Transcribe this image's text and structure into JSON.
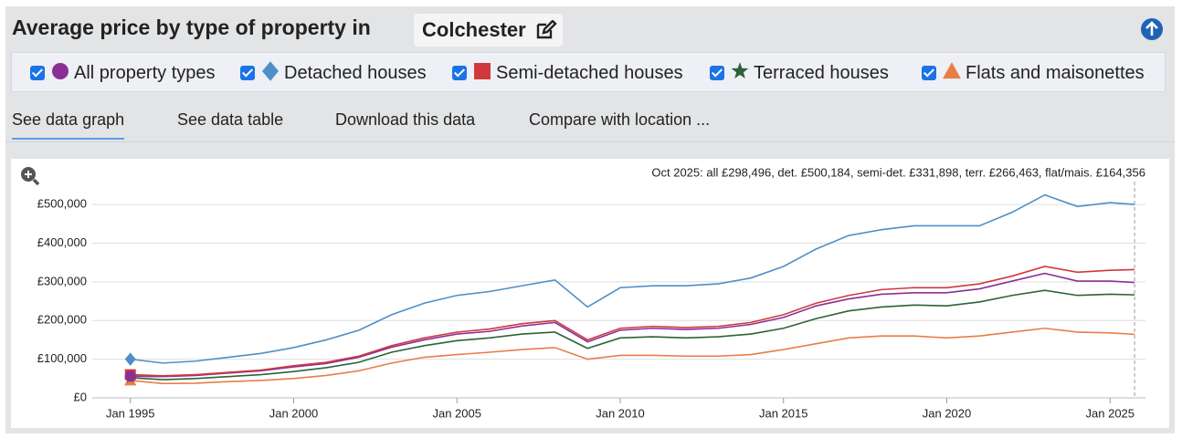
{
  "header": {
    "title": "Average price by type of property in",
    "location": "Colchester"
  },
  "tabs": [
    "See data graph",
    "See data table",
    "Download this data",
    "Compare with location ..."
  ],
  "chart_data": {
    "type": "line",
    "annotation": "Oct 2025: all £298,496, det. £500,184, semi-det. £331,898, terr. £266,463, flat/mais. £164,356",
    "x": [
      "1995-01",
      "1996-01",
      "1997-01",
      "1998-01",
      "1999-01",
      "2000-01",
      "2001-01",
      "2002-01",
      "2003-01",
      "2004-01",
      "2005-01",
      "2006-01",
      "2007-01",
      "2008-01",
      "2009-01",
      "2010-01",
      "2011-01",
      "2012-01",
      "2013-01",
      "2014-01",
      "2015-01",
      "2016-01",
      "2017-01",
      "2018-01",
      "2019-01",
      "2020-01",
      "2021-01",
      "2022-01",
      "2023-01",
      "2024-01",
      "2025-01",
      "2025-10"
    ],
    "series": [
      {
        "name": "All property types",
        "color": "#8b2f96",
        "marker": "circle",
        "values": [
          56000,
          55000,
          58000,
          64000,
          70000,
          80000,
          89000,
          105000,
          131000,
          150000,
          165000,
          172000,
          186000,
          195000,
          145000,
          175000,
          180000,
          177000,
          180000,
          190000,
          208000,
          238000,
          256000,
          268000,
          272000,
          272000,
          282000,
          302000,
          322000,
          302000,
          302000,
          298496
        ]
      },
      {
        "name": "Detached houses",
        "color": "#4f8fc7",
        "marker": "diamond",
        "values": [
          100000,
          90000,
          95000,
          105000,
          115000,
          130000,
          150000,
          175000,
          215000,
          245000,
          265000,
          275000,
          290000,
          305000,
          235000,
          285000,
          290000,
          290000,
          295000,
          310000,
          340000,
          385000,
          420000,
          435000,
          445000,
          445000,
          445000,
          480000,
          525000,
          495000,
          505000,
          500184
        ]
      },
      {
        "name": "Semi-detached houses",
        "color": "#d0393c",
        "marker": "square",
        "values": [
          60000,
          57000,
          60000,
          66000,
          72000,
          83000,
          92000,
          108000,
          135000,
          155000,
          170000,
          178000,
          192000,
          200000,
          150000,
          180000,
          185000,
          182000,
          185000,
          195000,
          215000,
          245000,
          265000,
          280000,
          285000,
          285000,
          295000,
          315000,
          340000,
          325000,
          330000,
          331898
        ]
      },
      {
        "name": "Terraced houses",
        "color": "#2b6436",
        "marker": "star",
        "values": [
          52000,
          47000,
          50000,
          55000,
          60000,
          68000,
          78000,
          92000,
          118000,
          135000,
          148000,
          155000,
          165000,
          170000,
          128000,
          155000,
          158000,
          155000,
          158000,
          165000,
          180000,
          205000,
          225000,
          235000,
          240000,
          238000,
          248000,
          265000,
          278000,
          265000,
          268000,
          266463
        ]
      },
      {
        "name": "Flats and maisonettes",
        "color": "#e87d47",
        "marker": "triangle",
        "values": [
          45000,
          37000,
          38000,
          42000,
          45000,
          50000,
          58000,
          70000,
          90000,
          105000,
          112000,
          118000,
          125000,
          130000,
          100000,
          110000,
          110000,
          108000,
          108000,
          112000,
          125000,
          140000,
          155000,
          160000,
          160000,
          155000,
          160000,
          170000,
          180000,
          170000,
          168000,
          164356
        ]
      }
    ],
    "xlim": [
      "1993-11",
      "2026-02"
    ],
    "xticks": [
      {
        "value": "1995-01",
        "label": "Jan 1995"
      },
      {
        "value": "2000-01",
        "label": "Jan 2000"
      },
      {
        "value": "2005-01",
        "label": "Jan 2005"
      },
      {
        "value": "2010-01",
        "label": "Jan 2010"
      },
      {
        "value": "2015-01",
        "label": "Jan 2015"
      },
      {
        "value": "2020-01",
        "label": "Jan 2020"
      },
      {
        "value": "2025-01",
        "label": "Jan 2025"
      }
    ],
    "ylim": [
      0,
      550000
    ],
    "yticks": [
      {
        "value": 0,
        "label": "£0"
      },
      {
        "value": 100000,
        "label": "£100,000"
      },
      {
        "value": 200000,
        "label": "£200,000"
      },
      {
        "value": 300000,
        "label": "£300,000"
      },
      {
        "value": 400000,
        "label": "£400,000"
      },
      {
        "value": 500000,
        "label": "£500,000"
      }
    ],
    "grid": true
  }
}
